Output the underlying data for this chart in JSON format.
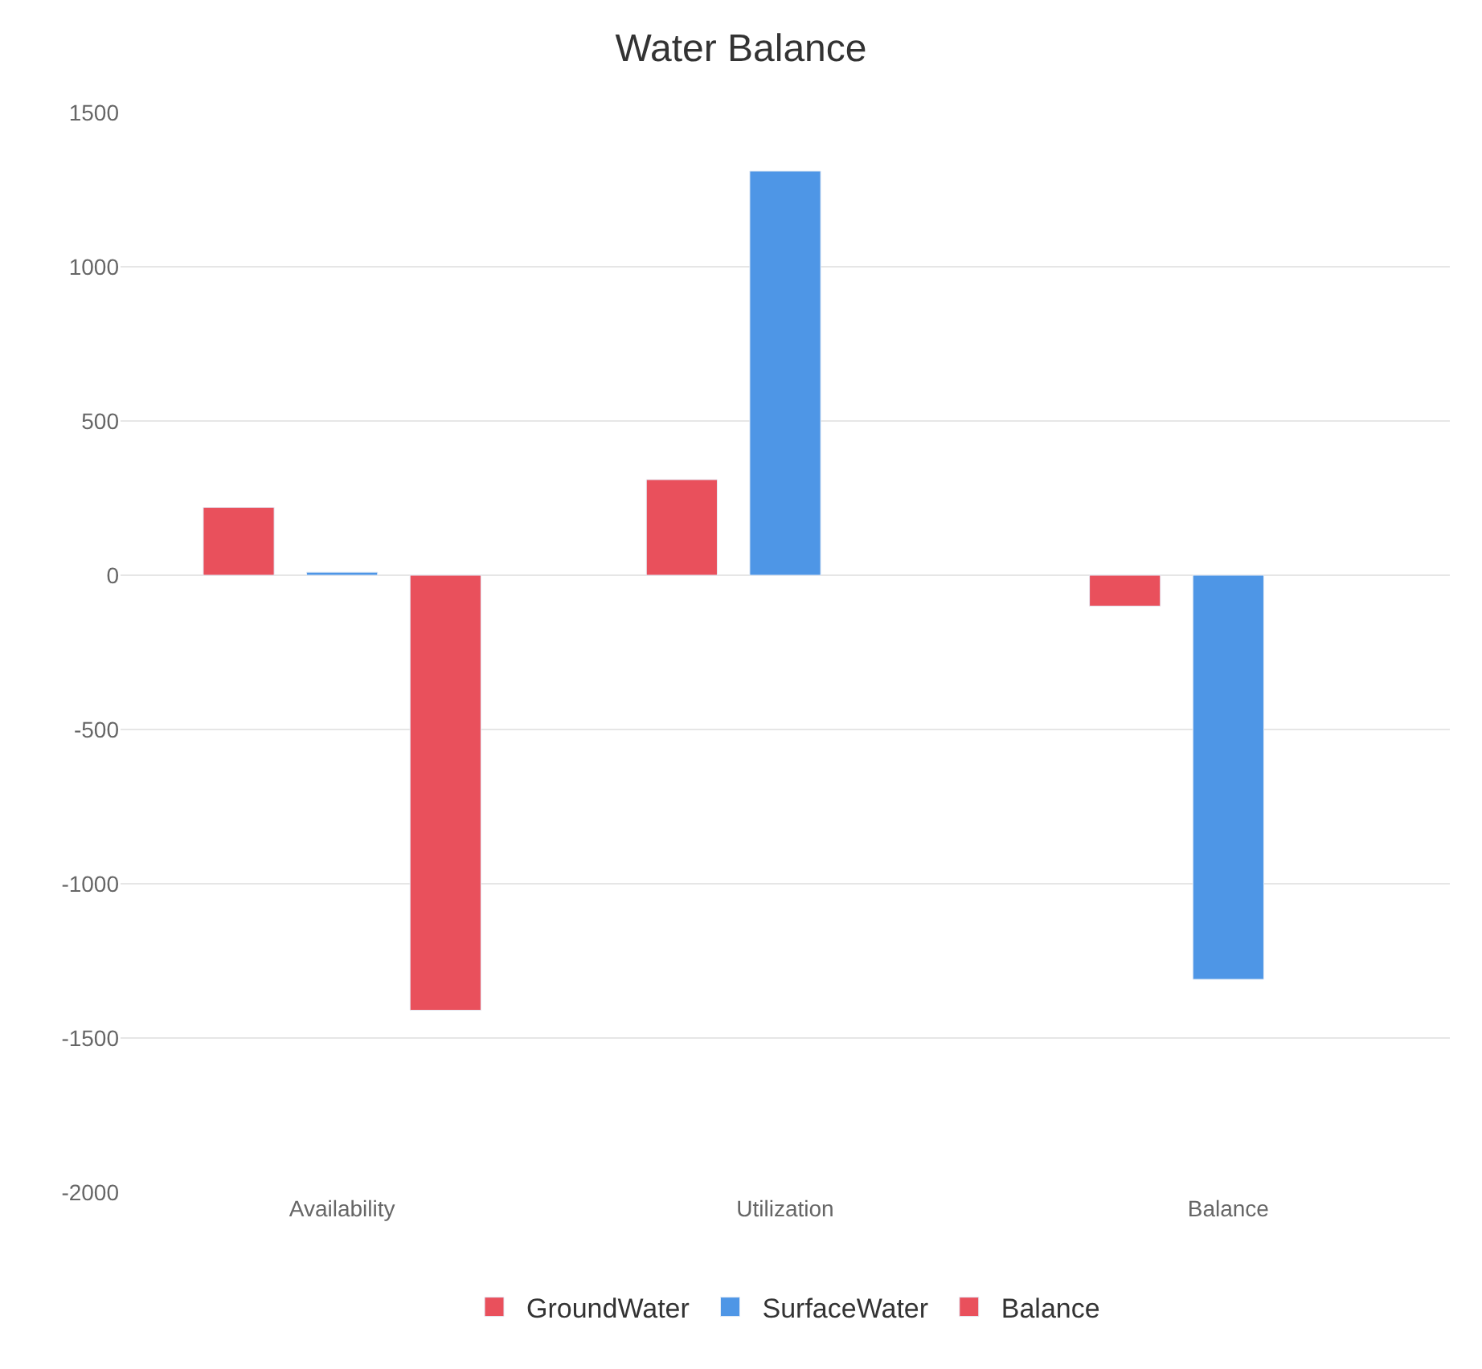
{
  "chart_data": {
    "type": "bar",
    "title": "Water Balance",
    "categories": [
      "Availability",
      "Utilization",
      "Balance"
    ],
    "series": [
      {
        "name": "GroundWater",
        "color": "#e9505c",
        "values": [
          220,
          310,
          -100
        ]
      },
      {
        "name": "SurfaceWater",
        "color": "#4e96e6",
        "values": [
          10,
          1310,
          -1310
        ]
      },
      {
        "name": "Balance",
        "color": "#e9505c",
        "values": [
          -1410,
          null,
          null
        ]
      }
    ],
    "ylim": [
      -2000,
      1500
    ],
    "yticks": [
      -2000,
      -1500,
      -1000,
      -500,
      0,
      500,
      1000,
      1500
    ],
    "grid": "y",
    "legend": "bottom"
  }
}
